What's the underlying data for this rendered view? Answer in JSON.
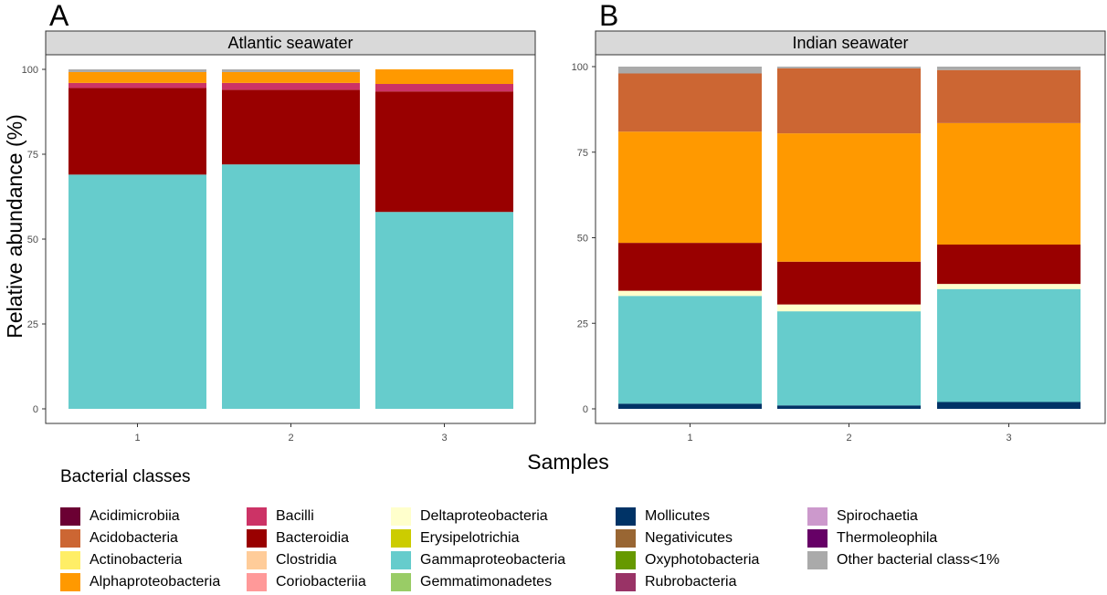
{
  "chart_data": {
    "type": "bar",
    "stacked": true,
    "ylabel": "Relative abundance (%)",
    "xlabel": "Samples",
    "ylim": [
      0,
      100
    ],
    "yticks": [
      "0",
      "25",
      "50",
      "75",
      "100"
    ],
    "grid": false,
    "legend_position": "bottom",
    "legend_title": "Bacterial classes",
    "legend": [
      {
        "name": "Acidimicrobiia",
        "color": "#6b0033"
      },
      {
        "name": "Acidobacteria",
        "color": "#cc6633"
      },
      {
        "name": "Actinobacteria",
        "color": "#ffee66"
      },
      {
        "name": "Alphaproteobacteria",
        "color": "#ff9900"
      },
      {
        "name": "Bacilli",
        "color": "#cc3366"
      },
      {
        "name": "Bacteroidia",
        "color": "#990000"
      },
      {
        "name": "Clostridia",
        "color": "#ffcc99"
      },
      {
        "name": "Coriobacteriia",
        "color": "#ff9999"
      },
      {
        "name": "Deltaproteobacteria",
        "color": "#ffffcc"
      },
      {
        "name": "Erysipelotrichia",
        "color": "#cccc00"
      },
      {
        "name": "Gammaproteobacteria",
        "color": "#66cccc"
      },
      {
        "name": "Gemmatimonadetes",
        "color": "#99cc66"
      },
      {
        "name": "Mollicutes",
        "color": "#003366"
      },
      {
        "name": "Negativicutes",
        "color": "#996633"
      },
      {
        "name": "Oxyphotobacteria",
        "color": "#669900"
      },
      {
        "name": "Rubrobacteria",
        "color": "#993366"
      },
      {
        "name": "Spirochaetia",
        "color": "#cc99cc"
      },
      {
        "name": "Thermoleophila",
        "color": "#660066"
      },
      {
        "name": "Other bacterial class<1%",
        "color": "#aaaaaa"
      }
    ],
    "panels": [
      {
        "tag": "A",
        "title": "Atlantic seawater",
        "categories": [
          "1",
          "2",
          "3"
        ],
        "bars": [
          [
            {
              "name": "Gammaproteobacteria",
              "value": 69
            },
            {
              "name": "Bacteroidia",
              "value": 25.5
            },
            {
              "name": "Bacilli",
              "value": 1.5
            },
            {
              "name": "Alphaproteobacteria",
              "value": 3.2
            },
            {
              "name": "Other bacterial class<1%",
              "value": 0.8
            }
          ],
          [
            {
              "name": "Gammaproteobacteria",
              "value": 72
            },
            {
              "name": "Bacteroidia",
              "value": 22
            },
            {
              "name": "Bacilli",
              "value": 2
            },
            {
              "name": "Alphaproteobacteria",
              "value": 3.2
            },
            {
              "name": "Other bacterial class<1%",
              "value": 0.8
            }
          ],
          [
            {
              "name": "Gammaproteobacteria",
              "value": 58
            },
            {
              "name": "Bacteroidia",
              "value": 35.5
            },
            {
              "name": "Bacilli",
              "value": 2.2
            },
            {
              "name": "Alphaproteobacteria",
              "value": 4.3
            }
          ]
        ]
      },
      {
        "tag": "B",
        "title": "Indian seawater",
        "categories": [
          "1",
          "2",
          "3"
        ],
        "bars": [
          [
            {
              "name": "Mollicutes",
              "value": 1.5
            },
            {
              "name": "Gammaproteobacteria",
              "value": 31.5
            },
            {
              "name": "Deltaproteobacteria",
              "value": 1.5
            },
            {
              "name": "Bacteroidia",
              "value": 14
            },
            {
              "name": "Alphaproteobacteria",
              "value": 32.5
            },
            {
              "name": "Acidobacteria",
              "value": 17
            },
            {
              "name": "Other bacterial class<1%",
              "value": 2
            }
          ],
          [
            {
              "name": "Mollicutes",
              "value": 1
            },
            {
              "name": "Gammaproteobacteria",
              "value": 27.5
            },
            {
              "name": "Deltaproteobacteria",
              "value": 2
            },
            {
              "name": "Bacteroidia",
              "value": 12.5
            },
            {
              "name": "Alphaproteobacteria",
              "value": 37.5
            },
            {
              "name": "Acidobacteria",
              "value": 19
            },
            {
              "name": "Other bacterial class<1%",
              "value": 0.5
            }
          ],
          [
            {
              "name": "Mollicutes",
              "value": 2
            },
            {
              "name": "Gammaproteobacteria",
              "value": 33
            },
            {
              "name": "Deltaproteobacteria",
              "value": 1.5
            },
            {
              "name": "Bacteroidia",
              "value": 11.5
            },
            {
              "name": "Alphaproteobacteria",
              "value": 35.5
            },
            {
              "name": "Acidobacteria",
              "value": 15.5
            },
            {
              "name": "Other bacterial class<1%",
              "value": 1
            }
          ]
        ]
      }
    ]
  }
}
